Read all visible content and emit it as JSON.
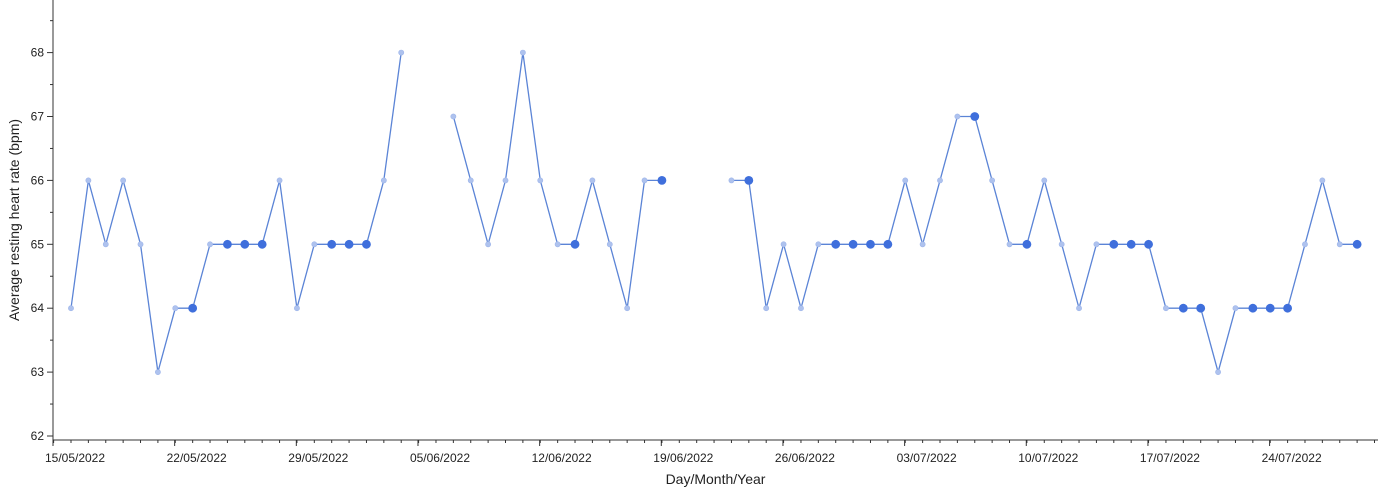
{
  "chart_data": {
    "type": "line",
    "title": "",
    "xlabel": "Day/Month/Year",
    "ylabel": "Average resting heart rate (bpm)",
    "ylim": [
      62,
      69
    ],
    "yticks": [
      62,
      63,
      64,
      65,
      66,
      67,
      68
    ],
    "xlim": [
      "2022-05-15",
      "2022-07-31"
    ],
    "xticks": [
      "15/05/2022",
      "22/05/2022",
      "29/05/2022",
      "05/06/2022",
      "12/06/2022",
      "19/06/2022",
      "26/06/2022",
      "03/07/2022",
      "10/07/2022",
      "17/07/2022",
      "24/07/2022"
    ],
    "grid": false,
    "line_color": "#5b84d6",
    "point_color": "#aec2ee",
    "highlight_color": "#3f6fdc",
    "series": [
      {
        "points": [
          {
            "date": "2022-05-15",
            "value": 64
          },
          {
            "date": "2022-05-16",
            "value": 66
          },
          {
            "date": "2022-05-17",
            "value": 65
          },
          {
            "date": "2022-05-18",
            "value": 66
          },
          {
            "date": "2022-05-19",
            "value": 65
          },
          {
            "date": "2022-05-20",
            "value": 63
          },
          {
            "date": "2022-05-21",
            "value": 64
          },
          {
            "date": "2022-05-22",
            "value": 64,
            "highlight": true
          },
          {
            "date": "2022-05-23",
            "value": 65
          },
          {
            "date": "2022-05-24",
            "value": 65,
            "highlight": true
          },
          {
            "date": "2022-05-25",
            "value": 65,
            "highlight": true
          },
          {
            "date": "2022-05-26",
            "value": 65,
            "highlight": true
          },
          {
            "date": "2022-05-27",
            "value": 66
          },
          {
            "date": "2022-05-28",
            "value": 64
          },
          {
            "date": "2022-05-29",
            "value": 65
          },
          {
            "date": "2022-05-30",
            "value": 65,
            "highlight": true
          },
          {
            "date": "2022-05-31",
            "value": 65,
            "highlight": true
          },
          {
            "date": "2022-06-01",
            "value": 65,
            "highlight": true
          },
          {
            "date": "2022-06-02",
            "value": 66
          },
          {
            "date": "2022-06-03",
            "value": 68
          }
        ]
      },
      {
        "points": [
          {
            "date": "2022-06-06",
            "value": 67
          },
          {
            "date": "2022-06-07",
            "value": 66
          },
          {
            "date": "2022-06-08",
            "value": 65
          },
          {
            "date": "2022-06-09",
            "value": 66
          },
          {
            "date": "2022-06-10",
            "value": 68
          },
          {
            "date": "2022-06-11",
            "value": 66
          },
          {
            "date": "2022-06-12",
            "value": 65
          },
          {
            "date": "2022-06-13",
            "value": 65,
            "highlight": true
          },
          {
            "date": "2022-06-14",
            "value": 66
          },
          {
            "date": "2022-06-15",
            "value": 65
          },
          {
            "date": "2022-06-16",
            "value": 64
          },
          {
            "date": "2022-06-17",
            "value": 66
          },
          {
            "date": "2022-06-18",
            "value": 66,
            "highlight": true
          }
        ]
      },
      {
        "points": [
          {
            "date": "2022-06-22",
            "value": 66
          },
          {
            "date": "2022-06-23",
            "value": 66,
            "highlight": true
          },
          {
            "date": "2022-06-24",
            "value": 64
          },
          {
            "date": "2022-06-25",
            "value": 65
          },
          {
            "date": "2022-06-26",
            "value": 64
          },
          {
            "date": "2022-06-27",
            "value": 65
          },
          {
            "date": "2022-06-28",
            "value": 65,
            "highlight": true
          },
          {
            "date": "2022-06-29",
            "value": 65,
            "highlight": true
          },
          {
            "date": "2022-06-30",
            "value": 65,
            "highlight": true
          },
          {
            "date": "2022-07-01",
            "value": 65,
            "highlight": true
          },
          {
            "date": "2022-07-02",
            "value": 66
          },
          {
            "date": "2022-07-03",
            "value": 65
          },
          {
            "date": "2022-07-04",
            "value": 66
          },
          {
            "date": "2022-07-05",
            "value": 67
          },
          {
            "date": "2022-07-06",
            "value": 67,
            "highlight": true
          },
          {
            "date": "2022-07-07",
            "value": 66
          },
          {
            "date": "2022-07-08",
            "value": 65
          },
          {
            "date": "2022-07-09",
            "value": 65,
            "highlight": true
          },
          {
            "date": "2022-07-10",
            "value": 66
          },
          {
            "date": "2022-07-11",
            "value": 65
          },
          {
            "date": "2022-07-12",
            "value": 64
          },
          {
            "date": "2022-07-13",
            "value": 65
          },
          {
            "date": "2022-07-14",
            "value": 65,
            "highlight": true
          },
          {
            "date": "2022-07-15",
            "value": 65,
            "highlight": true
          },
          {
            "date": "2022-07-16",
            "value": 65,
            "highlight": true
          },
          {
            "date": "2022-07-17",
            "value": 64
          },
          {
            "date": "2022-07-18",
            "value": 64,
            "highlight": true
          },
          {
            "date": "2022-07-19",
            "value": 64,
            "highlight": true
          },
          {
            "date": "2022-07-20",
            "value": 63
          },
          {
            "date": "2022-07-21",
            "value": 64
          },
          {
            "date": "2022-07-22",
            "value": 64,
            "highlight": true
          },
          {
            "date": "2022-07-23",
            "value": 64,
            "highlight": true
          },
          {
            "date": "2022-07-24",
            "value": 64,
            "highlight": true
          },
          {
            "date": "2022-07-25",
            "value": 65
          },
          {
            "date": "2022-07-26",
            "value": 66
          },
          {
            "date": "2022-07-27",
            "value": 65
          },
          {
            "date": "2022-07-28",
            "value": 65,
            "highlight": true
          }
        ]
      }
    ]
  }
}
